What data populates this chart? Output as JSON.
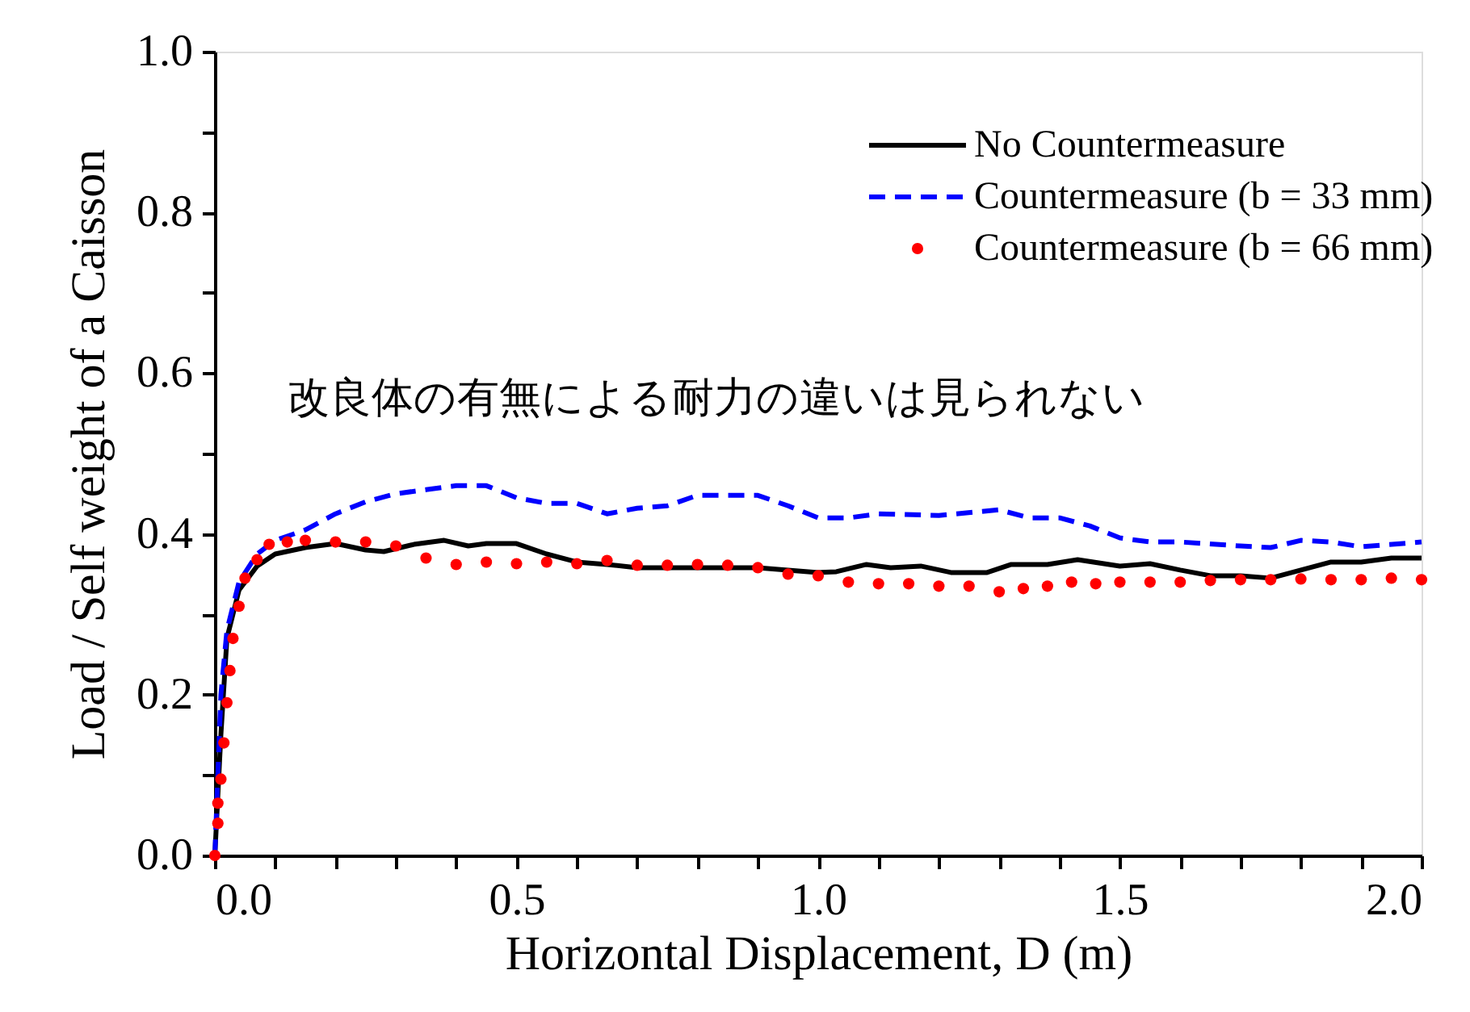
{
  "chart_data": {
    "type": "line",
    "xlabel": "Horizontal Displacement, D (m)",
    "ylabel": "Load / Self weight of a Caisson",
    "annotations": [
      "改良体の有無による耐力の違いは見られない"
    ],
    "xlim": [
      0,
      2.0
    ],
    "ylim": [
      0,
      1.0
    ],
    "xticks": [
      {
        "value": 0,
        "label": "0.0"
      },
      {
        "value": 0.1,
        "label": null
      },
      {
        "value": 0.2,
        "label": null
      },
      {
        "value": 0.3,
        "label": null
      },
      {
        "value": 0.4,
        "label": null
      },
      0.5,
      {
        "value": 0.6,
        "label": null
      },
      {
        "value": 0.7,
        "label": null
      },
      {
        "value": 0.8,
        "label": null
      },
      {
        "value": 0.9,
        "label": null
      },
      {
        "value": 1.0,
        "label": "1.0"
      },
      {
        "value": 1.1,
        "label": null
      },
      {
        "value": 1.2,
        "label": null
      },
      {
        "value": 1.3,
        "label": null
      },
      {
        "value": 1.4,
        "label": null
      },
      1.5,
      {
        "value": 1.6,
        "label": null
      },
      {
        "value": 1.7,
        "label": null
      },
      {
        "value": 1.8,
        "label": null
      },
      {
        "value": 1.9,
        "label": null
      },
      {
        "value": 2.0,
        "label": "2.0"
      }
    ],
    "yticks": [
      {
        "value": 0,
        "label": "0.0"
      },
      {
        "value": 0.1,
        "label": null
      },
      0.2,
      {
        "value": 0.3,
        "label": null
      },
      0.4,
      {
        "value": 0.5,
        "label": null
      },
      0.6,
      {
        "value": 0.7,
        "label": null
      },
      0.8,
      {
        "value": 0.9,
        "label": null
      },
      {
        "value": 1.0,
        "label": "1.0"
      }
    ],
    "grid": false,
    "legend": "top right",
    "series": [
      {
        "name": "No Countermeasure",
        "color": "#000000",
        "line_style": "solid",
        "marker": "none",
        "x": [
          0,
          0.01,
          0.02,
          0.04,
          0.07,
          0.1,
          0.15,
          0.2,
          0.25,
          0.28,
          0.33,
          0.38,
          0.42,
          0.45,
          0.5,
          0.55,
          0.6,
          0.65,
          0.7,
          0.8,
          0.9,
          0.95,
          1.0,
          1.03,
          1.08,
          1.12,
          1.17,
          1.22,
          1.28,
          1.32,
          1.38,
          1.43,
          1.5,
          1.55,
          1.6,
          1.65,
          1.7,
          1.75,
          1.8,
          1.85,
          1.9,
          1.95,
          2.0
        ],
        "values": [
          0,
          0.15,
          0.27,
          0.33,
          0.36,
          0.375,
          0.383,
          0.388,
          0.38,
          0.378,
          0.387,
          0.392,
          0.385,
          0.388,
          0.388,
          0.375,
          0.365,
          0.362,
          0.358,
          0.358,
          0.358,
          0.355,
          0.352,
          0.353,
          0.362,
          0.358,
          0.36,
          0.352,
          0.352,
          0.362,
          0.362,
          0.368,
          0.36,
          0.363,
          0.355,
          0.348,
          0.348,
          0.345,
          0.355,
          0.365,
          0.365,
          0.37,
          0.37
        ]
      },
      {
        "name": "Countermeasure (b = 33 mm)",
        "color": "#0000ff",
        "line_style": "dashed",
        "marker": "none",
        "x": [
          0,
          0.01,
          0.02,
          0.04,
          0.07,
          0.1,
          0.15,
          0.2,
          0.25,
          0.3,
          0.35,
          0.4,
          0.45,
          0.5,
          0.55,
          0.6,
          0.65,
          0.7,
          0.75,
          0.8,
          0.9,
          0.95,
          1.0,
          1.05,
          1.1,
          1.2,
          1.3,
          1.35,
          1.4,
          1.45,
          1.5,
          1.55,
          1.6,
          1.7,
          1.75,
          1.8,
          1.85,
          1.9,
          2.0
        ],
        "values": [
          0,
          0.2,
          0.28,
          0.34,
          0.375,
          0.392,
          0.405,
          0.425,
          0.44,
          0.45,
          0.455,
          0.46,
          0.46,
          0.445,
          0.438,
          0.438,
          0.425,
          0.432,
          0.435,
          0.448,
          0.448,
          0.435,
          0.42,
          0.42,
          0.425,
          0.423,
          0.43,
          0.42,
          0.42,
          0.41,
          0.395,
          0.39,
          0.39,
          0.385,
          0.383,
          0.392,
          0.39,
          0.384,
          0.39
        ]
      },
      {
        "name": "Countermeasure (b = 66 mm)",
        "color": "#ff0000",
        "type": "scatter",
        "marker": "circle",
        "x": [
          0,
          0.005,
          0.005,
          0.01,
          0.015,
          0.02,
          0.025,
          0.03,
          0.04,
          0.05,
          0.07,
          0.09,
          0.12,
          0.15,
          0.2,
          0.25,
          0.3,
          0.35,
          0.4,
          0.45,
          0.5,
          0.55,
          0.6,
          0.65,
          0.7,
          0.75,
          0.8,
          0.85,
          0.9,
          0.95,
          1.0,
          1.05,
          1.1,
          1.15,
          1.2,
          1.25,
          1.3,
          1.34,
          1.38,
          1.42,
          1.46,
          1.5,
          1.55,
          1.6,
          1.65,
          1.7,
          1.75,
          1.8,
          1.85,
          1.9,
          1.95,
          2.0
        ],
        "values": [
          0,
          0.04,
          0.065,
          0.095,
          0.14,
          0.19,
          0.23,
          0.27,
          0.31,
          0.345,
          0.368,
          0.387,
          0.39,
          0.392,
          0.39,
          0.39,
          0.385,
          0.37,
          0.362,
          0.365,
          0.363,
          0.365,
          0.363,
          0.367,
          0.361,
          0.361,
          0.362,
          0.361,
          0.358,
          0.35,
          0.348,
          0.34,
          0.338,
          0.338,
          0.335,
          0.335,
          0.328,
          0.332,
          0.335,
          0.34,
          0.338,
          0.34,
          0.34,
          0.34,
          0.342,
          0.343,
          0.343,
          0.344,
          0.343,
          0.343,
          0.345,
          0.343
        ]
      }
    ]
  }
}
